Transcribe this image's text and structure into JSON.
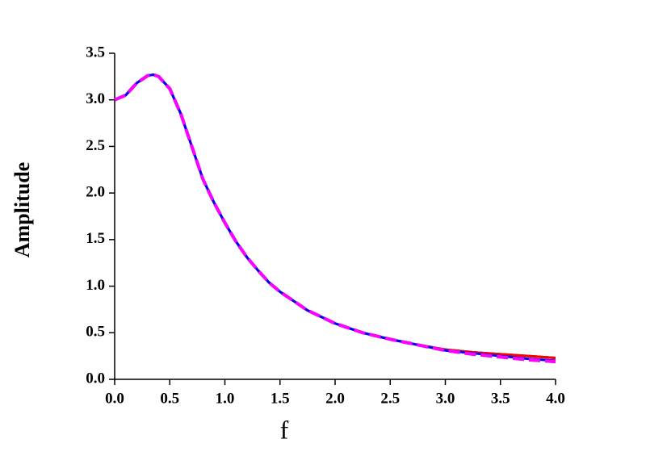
{
  "chart_data": {
    "type": "line",
    "x_label": "f",
    "y_label": "Amplitude",
    "x": [
      0,
      0.1,
      0.2,
      0.3,
      0.35,
      0.4,
      0.5,
      0.6,
      0.7,
      0.8,
      0.9,
      1.0,
      1.1,
      1.2,
      1.3,
      1.4,
      1.5,
      1.75,
      2.0,
      2.25,
      2.5,
      2.75,
      3.0,
      3.25,
      3.5,
      3.75,
      4.0
    ],
    "series": [
      {
        "color": "#000000",
        "dashed": false,
        "values": [
          3.0,
          3.05,
          3.18,
          3.26,
          3.27,
          3.25,
          3.12,
          2.85,
          2.5,
          2.15,
          1.9,
          1.68,
          1.48,
          1.31,
          1.17,
          1.04,
          0.94,
          0.74,
          0.6,
          0.5,
          0.43,
          0.37,
          0.32,
          0.29,
          0.27,
          0.25,
          0.23
        ]
      },
      {
        "color": "#ff0000",
        "dashed": false,
        "values": [
          3.0,
          3.05,
          3.18,
          3.26,
          3.27,
          3.25,
          3.12,
          2.85,
          2.5,
          2.15,
          1.9,
          1.68,
          1.48,
          1.31,
          1.17,
          1.04,
          0.94,
          0.74,
          0.6,
          0.5,
          0.43,
          0.37,
          0.32,
          0.29,
          0.27,
          0.25,
          0.23
        ]
      },
      {
        "color": "#0000ff",
        "dashed": false,
        "values": [
          3.0,
          3.05,
          3.18,
          3.26,
          3.27,
          3.25,
          3.12,
          2.85,
          2.5,
          2.15,
          1.9,
          1.68,
          1.48,
          1.31,
          1.17,
          1.04,
          0.94,
          0.74,
          0.6,
          0.5,
          0.43,
          0.37,
          0.31,
          0.28,
          0.25,
          0.22,
          0.2
        ]
      },
      {
        "color": "#008080",
        "dashed": true,
        "values": [
          3.0,
          3.05,
          3.18,
          3.26,
          3.27,
          3.25,
          3.12,
          2.85,
          2.5,
          2.15,
          1.9,
          1.68,
          1.48,
          1.31,
          1.17,
          1.04,
          0.94,
          0.74,
          0.6,
          0.5,
          0.43,
          0.37,
          0.31,
          0.27,
          0.24,
          0.21,
          0.19
        ]
      },
      {
        "color": "#ff00ff",
        "dashed": true,
        "values": [
          3.0,
          3.05,
          3.18,
          3.26,
          3.27,
          3.25,
          3.12,
          2.85,
          2.5,
          2.15,
          1.9,
          1.68,
          1.48,
          1.31,
          1.17,
          1.04,
          0.94,
          0.74,
          0.6,
          0.5,
          0.43,
          0.37,
          0.31,
          0.27,
          0.24,
          0.21,
          0.19
        ]
      }
    ],
    "xlim": [
      0,
      4
    ],
    "xticks": [
      {
        "value": 0,
        "label": "0.0"
      },
      {
        "value": 0.5,
        "label": "0.5"
      },
      {
        "value": 1,
        "label": "1.0"
      },
      {
        "value": 1.5,
        "label": "1.5"
      },
      {
        "value": 2,
        "label": "2.0"
      },
      {
        "value": 2.5,
        "label": "2.5"
      },
      {
        "value": 3,
        "label": "3.0"
      },
      {
        "value": 3.5,
        "label": "3.5"
      },
      {
        "value": 4,
        "label": "4.0"
      }
    ],
    "ylim": [
      0,
      3.5
    ],
    "yticks": [
      {
        "value": 0,
        "label": "0.0"
      },
      {
        "value": 0.5,
        "label": "0.5"
      },
      {
        "value": 1,
        "label": "1.0"
      },
      {
        "value": 1.5,
        "label": "1.5"
      },
      {
        "value": 2,
        "label": "2.0"
      },
      {
        "value": 2.5,
        "label": "2.5"
      },
      {
        "value": 3,
        "label": "3.0"
      },
      {
        "value": 3.5,
        "label": "3.5"
      }
    ],
    "grid": false
  }
}
